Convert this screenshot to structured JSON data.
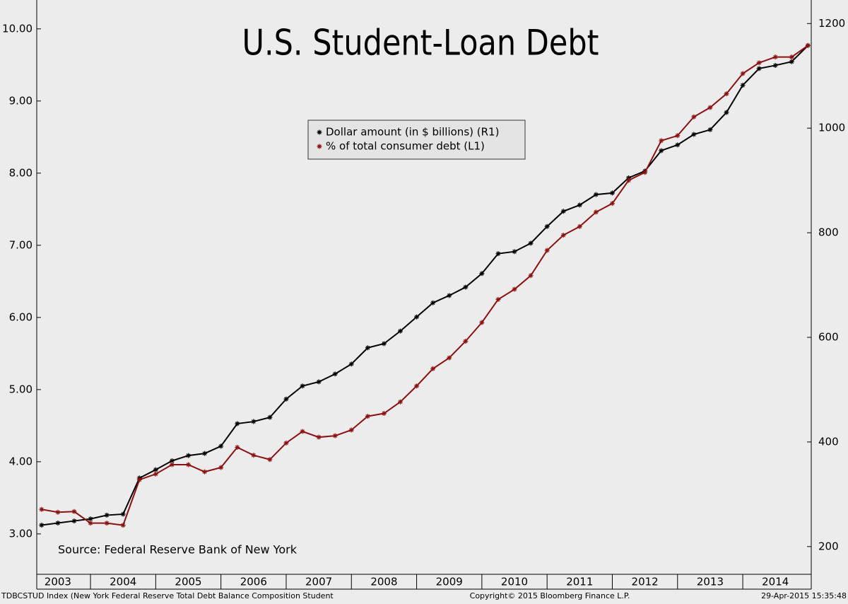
{
  "chart_data": {
    "type": "line",
    "title": "U.S. Student-Loan Debt",
    "annotation": "Source: Federal Reserve Bank of New York",
    "footer_left": "TDBCSTUD Index (New York Federal Reserve Total Debt Balance Composition Student",
    "footer_center": "Copyright© 2015 Bloomberg Finance L.P.",
    "footer_right": "29-Apr-2015 15:35:48",
    "x": [
      2003.25,
      2003.5,
      2003.75,
      2004.0,
      2004.25,
      2004.5,
      2004.75,
      2005.0,
      2005.25,
      2005.5,
      2005.75,
      2006.0,
      2006.25,
      2006.5,
      2006.75,
      2007.0,
      2007.25,
      2007.5,
      2007.75,
      2008.0,
      2008.25,
      2008.5,
      2008.75,
      2009.0,
      2009.25,
      2009.5,
      2009.75,
      2010.0,
      2010.25,
      2010.5,
      2010.75,
      2011.0,
      2011.25,
      2011.5,
      2011.75,
      2012.0,
      2012.25,
      2012.5,
      2012.75,
      2013.0,
      2013.25,
      2013.5,
      2013.75,
      2014.0,
      2014.25,
      2014.5,
      2014.75,
      2015.0
    ],
    "xlim": [
      2003.176,
      2015.05
    ],
    "xticks": [
      {
        "value": 2003.5,
        "label": "2003"
      },
      {
        "value": 2004.5,
        "label": "2004"
      },
      {
        "value": 2005.5,
        "label": "2005"
      },
      {
        "value": 2006.5,
        "label": "2006"
      },
      {
        "value": 2007.5,
        "label": "2007"
      },
      {
        "value": 2008.5,
        "label": "2008"
      },
      {
        "value": 2009.5,
        "label": "2009"
      },
      {
        "value": 2010.5,
        "label": "2010"
      },
      {
        "value": 2011.5,
        "label": "2011"
      },
      {
        "value": 2012.5,
        "label": "2012"
      },
      {
        "value": 2013.5,
        "label": "2013"
      },
      {
        "value": 2014.5,
        "label": "2014"
      }
    ],
    "ylim": [
      2.44,
      10.4
    ],
    "yticks": [
      {
        "value": 3,
        "label": "3.00"
      },
      {
        "value": 4,
        "label": "4.00"
      },
      {
        "value": 5,
        "label": "5.00"
      },
      {
        "value": 6,
        "label": "6.00"
      },
      {
        "value": 7,
        "label": "7.00"
      },
      {
        "value": 8,
        "label": "8.00"
      },
      {
        "value": 9,
        "label": "9.00"
      },
      {
        "value": 10,
        "label": "10.00"
      }
    ],
    "y2lim": [
      147,
      1245
    ],
    "y2ticks": [
      200,
      400,
      600,
      800,
      1000,
      1200
    ],
    "series": [
      {
        "name": "Dollar amount (in $ billions) (R1)",
        "color": "#000000",
        "axis": "y2",
        "values": [
          241,
          245,
          249,
          253,
          260,
          262,
          331,
          347,
          364,
          374,
          378,
          392,
          435,
          439,
          447,
          482,
          507,
          515,
          530,
          549,
          580,
          588,
          612,
          639,
          666,
          680,
          696,
          722,
          760,
          764,
          780,
          812,
          841,
          853,
          873,
          876,
          905,
          918,
          957,
          968,
          988,
          997,
          1030,
          1082,
          1114,
          1120,
          1127,
          1158
        ]
      },
      {
        "name": "% of total consumer debt (L1)",
        "color": "#8b1010",
        "axis": "y",
        "values": [
          3.34,
          3.3,
          3.31,
          3.15,
          3.15,
          3.12,
          3.75,
          3.83,
          3.96,
          3.96,
          3.86,
          3.92,
          4.2,
          4.09,
          4.03,
          4.26,
          4.42,
          4.34,
          4.36,
          4.44,
          4.63,
          4.67,
          4.83,
          5.05,
          5.29,
          5.44,
          5.67,
          5.93,
          6.25,
          6.39,
          6.58,
          6.93,
          7.14,
          7.26,
          7.46,
          7.58,
          7.9,
          8.01,
          8.45,
          8.52,
          8.78,
          8.91,
          9.1,
          9.38,
          9.53,
          9.61,
          9.61,
          9.77
        ]
      }
    ],
    "legend": "top-center"
  }
}
